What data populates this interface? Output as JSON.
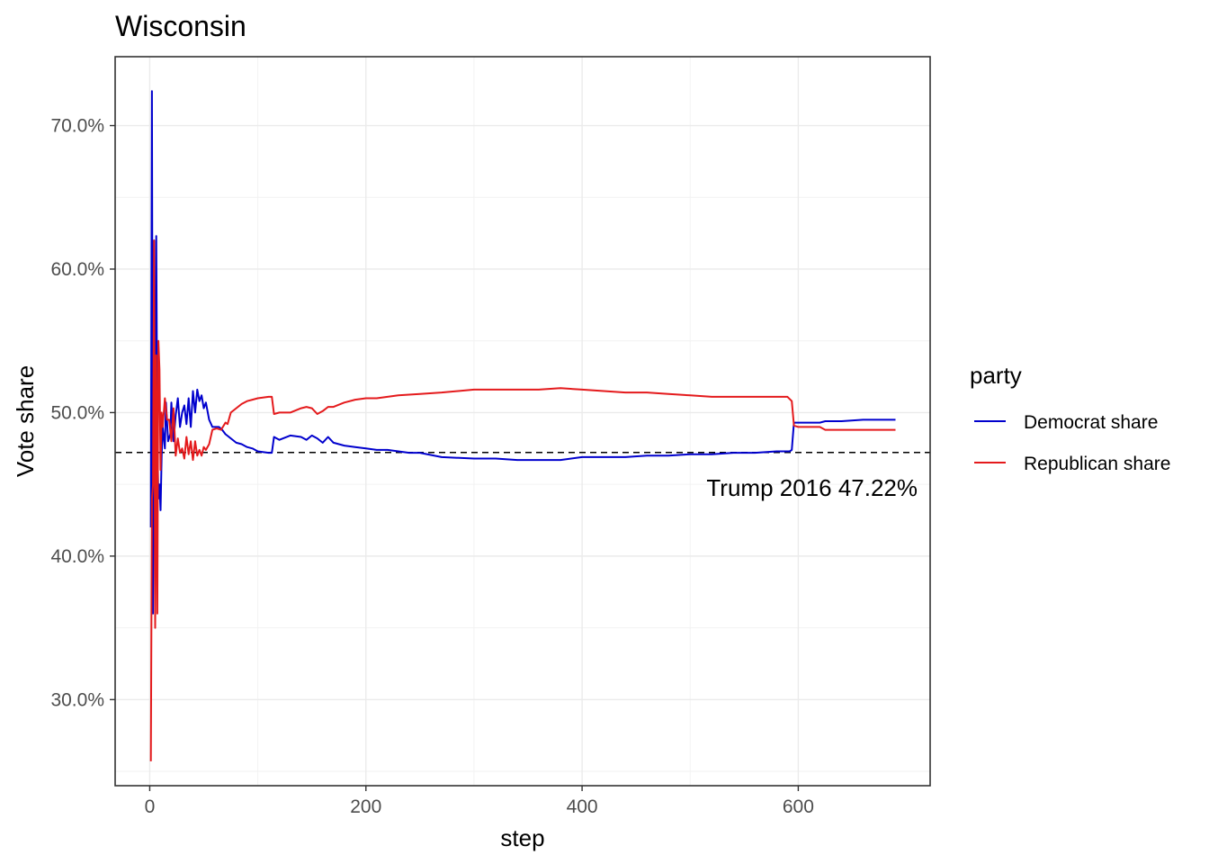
{
  "chart_data": {
    "type": "line",
    "title": "Wisconsin",
    "xlabel": "step",
    "ylabel": "Vote share",
    "xlim": [
      -32,
      722
    ],
    "ylim": [
      0.24,
      0.748
    ],
    "x_ticks": [
      0,
      200,
      400,
      600
    ],
    "x_tick_labels": [
      "0",
      "200",
      "400",
      "600"
    ],
    "y_ticks": [
      0.3,
      0.4,
      0.5,
      0.6,
      0.7
    ],
    "y_tick_labels": [
      "30.0%",
      "40.0%",
      "50.0%",
      "60.0%",
      "70.0%"
    ],
    "grid": true,
    "legend": {
      "title": "party",
      "position": "right"
    },
    "reference_line": {
      "y": 0.4722,
      "style": "dashed",
      "label": "Trump 2016 47.22%"
    },
    "series": [
      {
        "name": "Democrat share",
        "color": "#0000CD",
        "points": [
          [
            1,
            0.42
          ],
          [
            2,
            0.724
          ],
          [
            3,
            0.36
          ],
          [
            4,
            0.62
          ],
          [
            5,
            0.37
          ],
          [
            6,
            0.623
          ],
          [
            7,
            0.48
          ],
          [
            8,
            0.44
          ],
          [
            9,
            0.45
          ],
          [
            10,
            0.432
          ],
          [
            11,
            0.47
          ],
          [
            12,
            0.49
          ],
          [
            14,
            0.475
          ],
          [
            15,
            0.507
          ],
          [
            17,
            0.48
          ],
          [
            19,
            0.485
          ],
          [
            20,
            0.507
          ],
          [
            22,
            0.48
          ],
          [
            24,
            0.498
          ],
          [
            26,
            0.51
          ],
          [
            28,
            0.49
          ],
          [
            30,
            0.5
          ],
          [
            32,
            0.505
          ],
          [
            34,
            0.492
          ],
          [
            36,
            0.51
          ],
          [
            38,
            0.49
          ],
          [
            40,
            0.515
          ],
          [
            42,
            0.5
          ],
          [
            44,
            0.516
          ],
          [
            46,
            0.508
          ],
          [
            48,
            0.512
          ],
          [
            50,
            0.503
          ],
          [
            52,
            0.507
          ],
          [
            55,
            0.495
          ],
          [
            58,
            0.49
          ],
          [
            61,
            0.49
          ],
          [
            64,
            0.49
          ],
          [
            67,
            0.488
          ],
          [
            70,
            0.485
          ],
          [
            75,
            0.482
          ],
          [
            80,
            0.479
          ],
          [
            85,
            0.478
          ],
          [
            90,
            0.476
          ],
          [
            95,
            0.475
          ],
          [
            100,
            0.473
          ],
          [
            110,
            0.472
          ],
          [
            113,
            0.472
          ],
          [
            115,
            0.483
          ],
          [
            120,
            0.481
          ],
          [
            130,
            0.484
          ],
          [
            140,
            0.483
          ],
          [
            145,
            0.481
          ],
          [
            150,
            0.484
          ],
          [
            155,
            0.482
          ],
          [
            160,
            0.479
          ],
          [
            165,
            0.483
          ],
          [
            170,
            0.479
          ],
          [
            175,
            0.478
          ],
          [
            180,
            0.477
          ],
          [
            190,
            0.476
          ],
          [
            200,
            0.475
          ],
          [
            210,
            0.474
          ],
          [
            220,
            0.474
          ],
          [
            240,
            0.472
          ],
          [
            250,
            0.472
          ],
          [
            270,
            0.469
          ],
          [
            300,
            0.468
          ],
          [
            320,
            0.468
          ],
          [
            340,
            0.467
          ],
          [
            360,
            0.467
          ],
          [
            380,
            0.467
          ],
          [
            400,
            0.469
          ],
          [
            420,
            0.469
          ],
          [
            440,
            0.469
          ],
          [
            460,
            0.47
          ],
          [
            480,
            0.47
          ],
          [
            500,
            0.471
          ],
          [
            520,
            0.471
          ],
          [
            540,
            0.472
          ],
          [
            560,
            0.472
          ],
          [
            580,
            0.473
          ],
          [
            592,
            0.473
          ],
          [
            594,
            0.474
          ],
          [
            596,
            0.493
          ],
          [
            620,
            0.493
          ],
          [
            625,
            0.494
          ],
          [
            640,
            0.494
          ],
          [
            660,
            0.495
          ],
          [
            690,
            0.495
          ]
        ]
      },
      {
        "name": "Republican share",
        "color": "#E41A1C",
        "points": [
          [
            1,
            0.257
          ],
          [
            2,
            0.44
          ],
          [
            3,
            0.45
          ],
          [
            4,
            0.62
          ],
          [
            5,
            0.35
          ],
          [
            6,
            0.54
          ],
          [
            7,
            0.36
          ],
          [
            8,
            0.55
          ],
          [
            9,
            0.53
          ],
          [
            10,
            0.46
          ],
          [
            11,
            0.5
          ],
          [
            12,
            0.49
          ],
          [
            14,
            0.51
          ],
          [
            16,
            0.495
          ],
          [
            18,
            0.495
          ],
          [
            20,
            0.48
          ],
          [
            22,
            0.503
          ],
          [
            24,
            0.47
          ],
          [
            26,
            0.482
          ],
          [
            28,
            0.472
          ],
          [
            30,
            0.475
          ],
          [
            32,
            0.468
          ],
          [
            34,
            0.483
          ],
          [
            36,
            0.471
          ],
          [
            38,
            0.48
          ],
          [
            40,
            0.467
          ],
          [
            42,
            0.48
          ],
          [
            44,
            0.47
          ],
          [
            46,
            0.474
          ],
          [
            48,
            0.47
          ],
          [
            50,
            0.476
          ],
          [
            52,
            0.474
          ],
          [
            55,
            0.478
          ],
          [
            58,
            0.488
          ],
          [
            62,
            0.489
          ],
          [
            66,
            0.488
          ],
          [
            70,
            0.493
          ],
          [
            72,
            0.492
          ],
          [
            75,
            0.5
          ],
          [
            80,
            0.503
          ],
          [
            85,
            0.506
          ],
          [
            90,
            0.508
          ],
          [
            95,
            0.509
          ],
          [
            100,
            0.51
          ],
          [
            110,
            0.511
          ],
          [
            113,
            0.511
          ],
          [
            115,
            0.499
          ],
          [
            120,
            0.5
          ],
          [
            130,
            0.5
          ],
          [
            140,
            0.503
          ],
          [
            145,
            0.504
          ],
          [
            150,
            0.503
          ],
          [
            155,
            0.499
          ],
          [
            160,
            0.501
          ],
          [
            165,
            0.504
          ],
          [
            170,
            0.504
          ],
          [
            180,
            0.507
          ],
          [
            190,
            0.509
          ],
          [
            200,
            0.51
          ],
          [
            210,
            0.51
          ],
          [
            230,
            0.512
          ],
          [
            250,
            0.513
          ],
          [
            270,
            0.514
          ],
          [
            300,
            0.516
          ],
          [
            320,
            0.516
          ],
          [
            340,
            0.516
          ],
          [
            360,
            0.516
          ],
          [
            380,
            0.517
          ],
          [
            400,
            0.516
          ],
          [
            420,
            0.515
          ],
          [
            440,
            0.514
          ],
          [
            460,
            0.514
          ],
          [
            480,
            0.513
          ],
          [
            500,
            0.512
          ],
          [
            520,
            0.511
          ],
          [
            540,
            0.511
          ],
          [
            560,
            0.511
          ],
          [
            580,
            0.511
          ],
          [
            590,
            0.511
          ],
          [
            594,
            0.508
          ],
          [
            596,
            0.491
          ],
          [
            600,
            0.49
          ],
          [
            620,
            0.49
          ],
          [
            625,
            0.488
          ],
          [
            640,
            0.488
          ],
          [
            660,
            0.488
          ],
          [
            690,
            0.488
          ]
        ]
      }
    ]
  }
}
